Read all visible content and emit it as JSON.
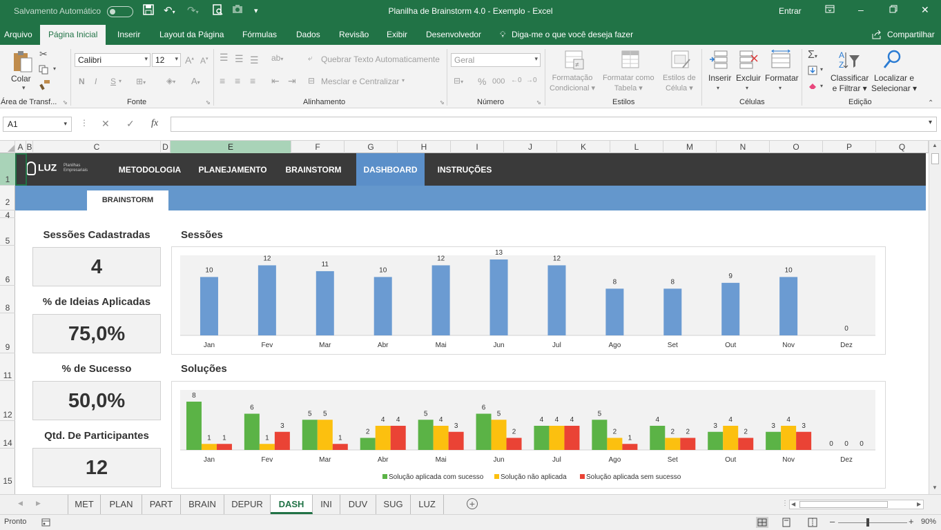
{
  "titlebar": {
    "autosave_label": "Salvamento Automático",
    "title": "Planilha de Brainstorm 4.0 - Exemplo  -  Excel",
    "signin": "Entrar",
    "quick_access_icons": [
      "save-icon",
      "undo-icon",
      "redo-icon",
      "print-preview-icon",
      "camera-icon",
      "customize-icon"
    ]
  },
  "menu": {
    "tabs": [
      "Arquivo",
      "Página Inicial",
      "Inserir",
      "Layout da Página",
      "Fórmulas",
      "Dados",
      "Revisão",
      "Exibir",
      "Desenvolvedor"
    ],
    "tell_me": "Diga-me o que você deseja fazer",
    "share": "Compartilhar"
  },
  "ribbon": {
    "clipboard": {
      "label": "Área de Transf...",
      "paste": "Colar"
    },
    "font": {
      "label": "Fonte",
      "family": "Calibri",
      "size": "12",
      "bold": "N",
      "italic": "I",
      "underline": "S"
    },
    "alignment": {
      "label": "Alinhamento",
      "wrap": "Quebrar Texto Automaticamente",
      "merge": "Mesclar e Centralizar"
    },
    "number": {
      "label": "Número",
      "format": "Geral",
      "percent": "%",
      "thousands": "000"
    },
    "styles": {
      "label": "Estilos",
      "conditional": [
        "Formatação",
        "Condicional"
      ],
      "as_table": [
        "Formatar como",
        "Tabela"
      ],
      "cell_styles": [
        "Estilos de",
        "Célula"
      ]
    },
    "cells": {
      "label": "Células",
      "insert": "Inserir",
      "delete": "Excluir",
      "format": "Formatar"
    },
    "editing": {
      "label": "Edição",
      "sort": [
        "Classificar",
        "e Filtrar"
      ],
      "find": [
        "Localizar e",
        "Selecionar"
      ]
    }
  },
  "formula_bar": {
    "name_box": "A1",
    "cancel": "✕",
    "enter": "✓",
    "fx": "fx",
    "value": ""
  },
  "columns": [
    "A",
    "B",
    "C",
    "D",
    "E",
    "F",
    "G",
    "H",
    "I",
    "J",
    "K",
    "L",
    "M",
    "N",
    "O",
    "P",
    "Q"
  ],
  "rows": [
    "1",
    "2",
    "4",
    "5",
    "6",
    "8",
    "9",
    "11",
    "12",
    "14",
    "15"
  ],
  "dashboard": {
    "nav": [
      "METODOLOGIA",
      "PLANEJAMENTO",
      "BRAINSTORM",
      "DASHBOARD",
      "INSTRUÇÕES"
    ],
    "active_nav": "DASHBOARD",
    "logo_text": "LUZ",
    "logo_sub": "Planilhas Empresariais",
    "sub_button": "BRAINSTORM",
    "kpis": [
      {
        "title": "Sessões Cadastradas",
        "value": "4"
      },
      {
        "title": "% de Ideias Aplicadas",
        "value": "75,0%"
      },
      {
        "title": "% de Sucesso",
        "value": "50,0%"
      },
      {
        "title": "Qtd. De Participantes",
        "value": "12"
      }
    ],
    "sessions_title": "Sessões",
    "solutions_title": "Soluções"
  },
  "chart_data": [
    {
      "type": "bar",
      "title": "Sessões",
      "categories": [
        "Jan",
        "Fev",
        "Mar",
        "Abr",
        "Mai",
        "Jun",
        "Jul",
        "Ago",
        "Set",
        "Out",
        "Nov",
        "Dez"
      ],
      "values": [
        10,
        12,
        11,
        10,
        12,
        13,
        12,
        8,
        8,
        9,
        10,
        0
      ],
      "ylim": [
        0,
        13
      ],
      "color": "#6b9bd2",
      "data_labels": true,
      "grid": false
    },
    {
      "type": "bar",
      "title": "Soluções",
      "categories": [
        "Jan",
        "Fev",
        "Mar",
        "Abr",
        "Mai",
        "Jun",
        "Jul",
        "Ago",
        "Set",
        "Out",
        "Nov",
        "Dez"
      ],
      "series": [
        {
          "name": "Solução aplicada com sucesso",
          "color": "#5bb346",
          "values": [
            8,
            6,
            5,
            2,
            5,
            6,
            4,
            5,
            4,
            3,
            3,
            0
          ]
        },
        {
          "name": "Solução não aplicada",
          "color": "#fcc00f",
          "values": [
            1,
            1,
            5,
            4,
            4,
            5,
            4,
            2,
            2,
            4,
            4,
            0
          ]
        },
        {
          "name": "Solução aplicada sem sucesso",
          "color": "#ea4335",
          "values": [
            1,
            3,
            1,
            4,
            3,
            2,
            4,
            1,
            2,
            2,
            3,
            0
          ]
        }
      ],
      "ylim": [
        0,
        8
      ],
      "legend": "bottom",
      "data_labels": true,
      "grid": false
    }
  ],
  "sheet_tabs": [
    "MET",
    "PLAN",
    "PART",
    "BRAIN",
    "DEPUR",
    "DASH",
    "INI",
    "DUV",
    "SUG",
    "LUZ"
  ],
  "active_sheet": "DASH",
  "status": {
    "ready": "Pronto",
    "zoom": "90%"
  }
}
